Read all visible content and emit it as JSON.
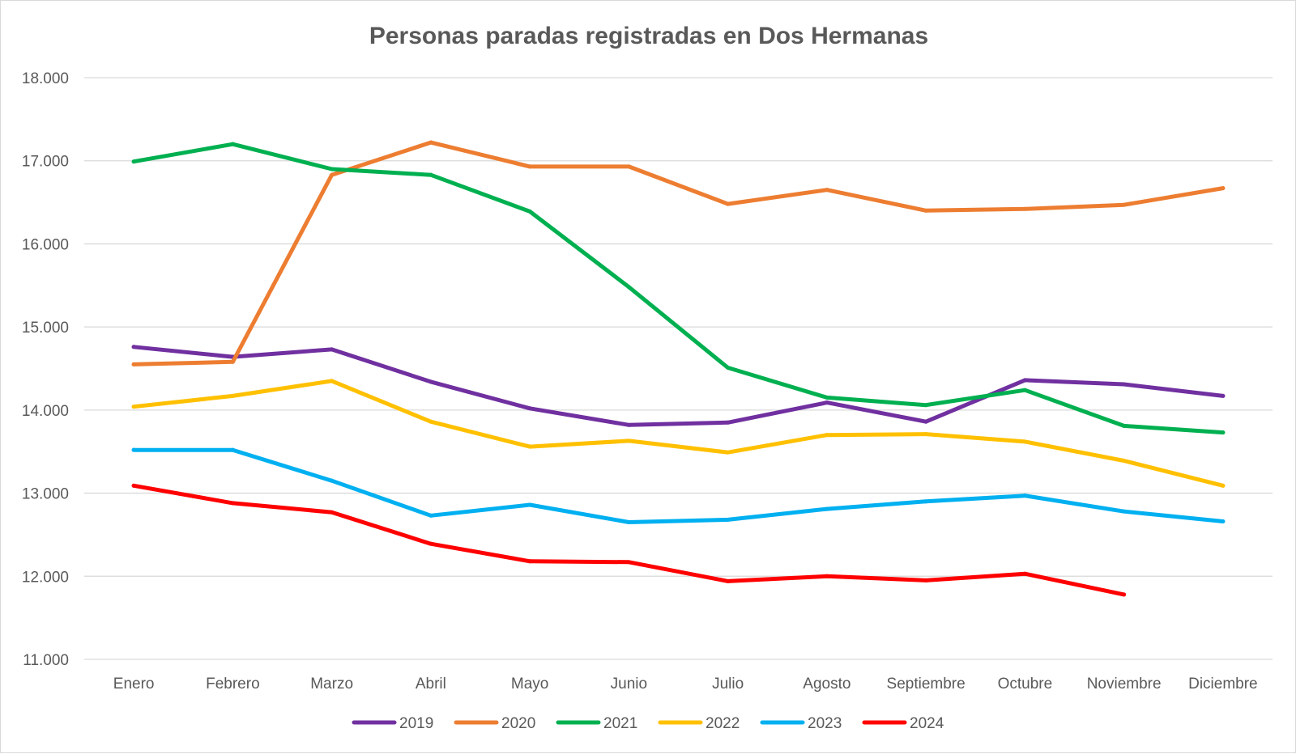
{
  "chart_data": {
    "type": "line",
    "title": "Personas paradas registradas en Dos Hermanas",
    "xlabel": "",
    "ylabel": "",
    "categories": [
      "Enero",
      "Febrero",
      "Marzo",
      "Abril",
      "Mayo",
      "Junio",
      "Julio",
      "Agosto",
      "Septiembre",
      "Octubre",
      "Noviembre",
      "Diciembre"
    ],
    "ylim": [
      11000,
      18000
    ],
    "yticks": [
      11000,
      12000,
      13000,
      14000,
      15000,
      16000,
      17000,
      18000
    ],
    "ytick_labels": [
      "11.000",
      "12.000",
      "13.000",
      "14.000",
      "15.000",
      "16.000",
      "17.000",
      "18.000"
    ],
    "grid": true,
    "legend_position": "bottom",
    "series": [
      {
        "name": "2019",
        "color": "#7030a0",
        "values": [
          14760,
          14640,
          14730,
          14340,
          14020,
          13820,
          13850,
          14090,
          13860,
          14360,
          14310,
          14170
        ]
      },
      {
        "name": "2020",
        "color": "#ed7d31",
        "values": [
          14550,
          14580,
          16830,
          17220,
          16930,
          16930,
          16480,
          16650,
          16400,
          16420,
          16470,
          16670
        ]
      },
      {
        "name": "2021",
        "color": "#00b050",
        "values": [
          16990,
          17200,
          16900,
          16830,
          16390,
          15480,
          14510,
          14150,
          14060,
          14240,
          13810,
          13730
        ]
      },
      {
        "name": "2022",
        "color": "#ffc000",
        "values": [
          14040,
          14170,
          14350,
          13860,
          13560,
          13630,
          13490,
          13700,
          13710,
          13620,
          13390,
          13090
        ]
      },
      {
        "name": "2023",
        "color": "#00b0f0",
        "values": [
          13520,
          13520,
          13150,
          12730,
          12860,
          12650,
          12680,
          12810,
          12900,
          12970,
          12780,
          12660
        ]
      },
      {
        "name": "2024",
        "color": "#ff0000",
        "values": [
          13090,
          12880,
          12770,
          12390,
          12180,
          12170,
          11940,
          12000,
          11950,
          12030,
          11780,
          null
        ]
      }
    ]
  }
}
